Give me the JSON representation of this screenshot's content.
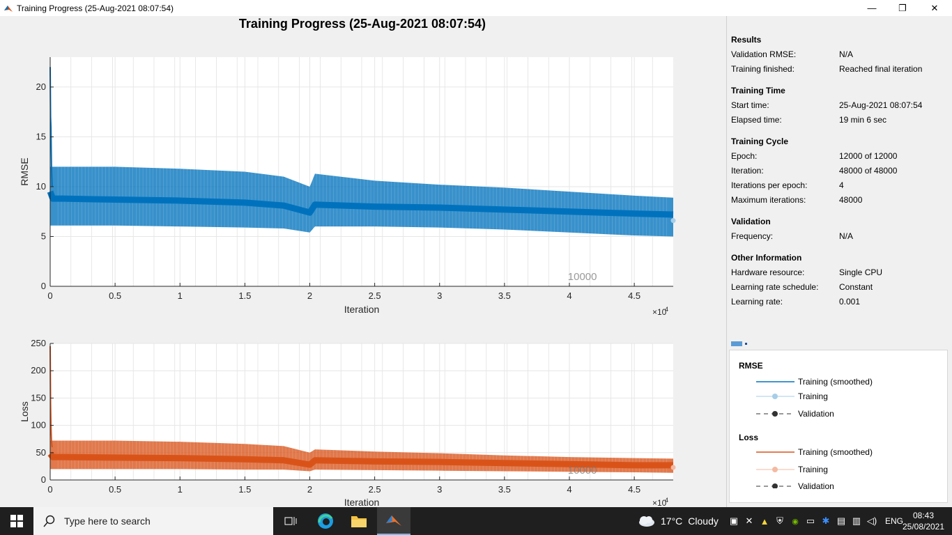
{
  "window": {
    "title": "Training Progress (25-Aug-2021 08:07:54)",
    "controls": {
      "minimize": "—",
      "restore": "❐",
      "close": "✕"
    }
  },
  "figure": {
    "title": "Training Progress (25-Aug-2021 08:07:54)"
  },
  "chart_data": [
    {
      "type": "line",
      "title": "",
      "xlabel": "Iteration",
      "ylabel": "RMSE",
      "xlim": [
        0,
        48000
      ],
      "ylim": [
        0,
        23
      ],
      "x_ticks": [
        "0",
        "0.5",
        "1",
        "1.5",
        "2",
        "2.5",
        "3",
        "3.5",
        "4",
        "4.5"
      ],
      "y_ticks": [
        "0",
        "5",
        "10",
        "15",
        "20"
      ],
      "x_multiplier": "×10",
      "x_multiplier_exp": "4",
      "annotation": "10000",
      "grid": true,
      "series": [
        {
          "name": "Training (smoothed)",
          "color": "#0072BD",
          "x": [
            0,
            200,
            1000,
            5000,
            10000,
            15000,
            18000,
            20000,
            20400,
            25000,
            30000,
            35000,
            40000,
            45000,
            48000
          ],
          "y": [
            9.5,
            8.8,
            8.8,
            8.7,
            8.6,
            8.4,
            8.1,
            7.4,
            8.2,
            8.0,
            7.9,
            7.7,
            7.5,
            7.3,
            7.2
          ]
        },
        {
          "name": "Training band max",
          "color": "#0072BD",
          "x": [
            0,
            5000,
            10000,
            15000,
            18000,
            20000,
            20400,
            25000,
            30000,
            35000,
            40000,
            45000,
            48000
          ],
          "y": [
            12.0,
            12.0,
            11.8,
            11.5,
            11.0,
            10.0,
            11.3,
            10.6,
            10.2,
            9.9,
            9.5,
            9.1,
            8.9
          ]
        },
        {
          "name": "Training band min",
          "color": "#0072BD",
          "x": [
            0,
            5000,
            10000,
            15000,
            18000,
            20000,
            20400,
            25000,
            30000,
            35000,
            40000,
            45000,
            48000
          ],
          "y": [
            6.1,
            6.1,
            6.0,
            5.9,
            5.8,
            5.4,
            6.0,
            6.0,
            5.9,
            5.7,
            5.4,
            5.1,
            5.0
          ]
        },
        {
          "name": "Initial spike",
          "color": "#0072BD",
          "x": [
            0,
            30,
            60,
            100,
            150
          ],
          "y": [
            22,
            17,
            16,
            12,
            10
          ]
        },
        {
          "name": "Final point",
          "color": "#A6CEE8",
          "x": [
            48000
          ],
          "y": [
            6.6
          ]
        }
      ]
    },
    {
      "type": "line",
      "title": "",
      "xlabel": "Iteration",
      "ylabel": "Loss",
      "xlim": [
        0,
        48000
      ],
      "ylim": [
        0,
        250
      ],
      "x_ticks": [
        "0",
        "0.5",
        "1",
        "1.5",
        "2",
        "2.5",
        "3",
        "3.5",
        "4",
        "4.5"
      ],
      "y_ticks": [
        "0",
        "50",
        "100",
        "150",
        "200",
        "250"
      ],
      "x_multiplier": "×10",
      "x_multiplier_exp": "4",
      "annotation": "10000",
      "grid": true,
      "series": [
        {
          "name": "Training (smoothed)",
          "color": "#D95319",
          "x": [
            0,
            200,
            1000,
            5000,
            10000,
            15000,
            18000,
            20000,
            20400,
            25000,
            30000,
            35000,
            40000,
            45000,
            48000
          ],
          "y": [
            48,
            42,
            42,
            41,
            40,
            38,
            36,
            28,
            36,
            34,
            33,
            31,
            29,
            27,
            27
          ]
        },
        {
          "name": "Training band max",
          "color": "#D95319",
          "x": [
            0,
            5000,
            10000,
            15000,
            18000,
            20000,
            20400,
            25000,
            30000,
            35000,
            40000,
            45000,
            48000
          ],
          "y": [
            72,
            72,
            70,
            66,
            62,
            50,
            56,
            52,
            49,
            45,
            42,
            40,
            39
          ]
        },
        {
          "name": "Training band min",
          "color": "#D95319",
          "x": [
            0,
            5000,
            10000,
            15000,
            18000,
            20000,
            20400,
            25000,
            30000,
            35000,
            40000,
            45000,
            48000
          ],
          "y": [
            20,
            20,
            20,
            19,
            19,
            16,
            19,
            18,
            17,
            16,
            15,
            14,
            13
          ]
        },
        {
          "name": "Initial spike",
          "color": "#D95319",
          "x": [
            0,
            30,
            60,
            100,
            150
          ],
          "y": [
            245,
            140,
            100,
            70,
            60
          ]
        },
        {
          "name": "Final point",
          "color": "#F4B9A0",
          "x": [
            48000
          ],
          "y": [
            23
          ]
        }
      ]
    }
  ],
  "results": {
    "heading": "Results",
    "rows": [
      {
        "label": "Validation RMSE:",
        "value": "N/A"
      },
      {
        "label": "Training finished:",
        "value": "Reached final iteration"
      }
    ]
  },
  "training_time": {
    "heading": "Training Time",
    "rows": [
      {
        "label": "Start time:",
        "value": "25-Aug-2021 08:07:54"
      },
      {
        "label": "Elapsed time:",
        "value": "19 min 6 sec"
      }
    ]
  },
  "training_cycle": {
    "heading": "Training Cycle",
    "rows": [
      {
        "label": "Epoch:",
        "value": "12000 of 12000"
      },
      {
        "label": "Iteration:",
        "value": "48000 of 48000"
      },
      {
        "label": "Iterations per epoch:",
        "value": "4"
      },
      {
        "label": "Maximum iterations:",
        "value": "48000"
      }
    ]
  },
  "validation": {
    "heading": "Validation",
    "rows": [
      {
        "label": "Frequency:",
        "value": "N/A"
      }
    ]
  },
  "other_info": {
    "heading": "Other Information",
    "rows": [
      {
        "label": "Hardware resource:",
        "value": "Single CPU"
      },
      {
        "label": "Learning rate schedule:",
        "value": "Constant"
      },
      {
        "label": "Learning rate:",
        "value": "0.001"
      }
    ]
  },
  "legend": {
    "rmse": {
      "heading": "RMSE",
      "smoothed": "Training (smoothed)",
      "training": "Training",
      "validation": "Validation",
      "colors": {
        "smoothed": "#0072BD",
        "training": "#A6CEE8",
        "validation": "#333333"
      }
    },
    "loss": {
      "heading": "Loss",
      "smoothed": "Training (smoothed)",
      "training": "Training",
      "validation": "Validation",
      "colors": {
        "smoothed": "#D95319",
        "training": "#F4B9A0",
        "validation": "#333333"
      }
    }
  },
  "taskbar": {
    "search_placeholder": "Type here to search",
    "weather_temp": "17°C",
    "weather_text": "Cloudy",
    "language": "ENG",
    "time": "08:43",
    "date": "25/08/2021"
  }
}
